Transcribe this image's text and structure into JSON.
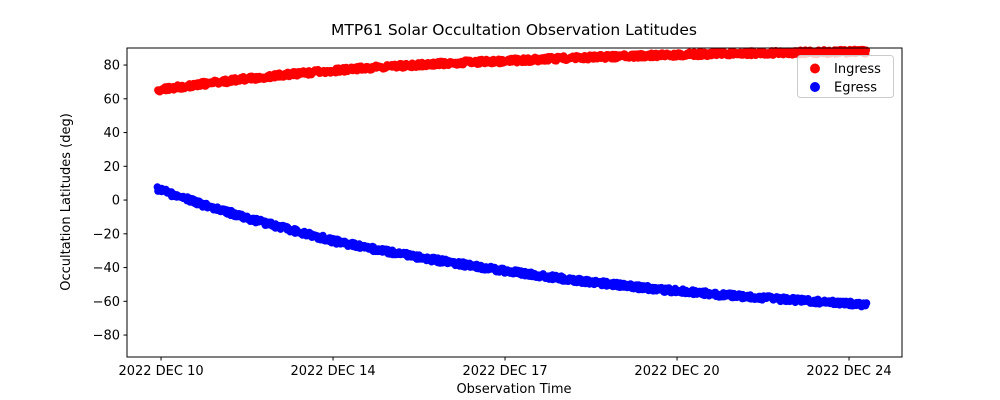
{
  "figure": {
    "background": "#ffffff"
  },
  "chart_data": {
    "type": "scatter",
    "title": "MTP61 Solar Occultation Observation Latitudes",
    "xlabel": "Observation Time",
    "ylabel": "Occultation Latitudes (deg)",
    "grid": false,
    "x_tick_labels": [
      "2022 DEC 10",
      "2022 DEC 14",
      "2022 DEC 17",
      "2022 DEC 20",
      "2022 DEC 24"
    ],
    "x_tick_positions": [
      0,
      1,
      2,
      3,
      4
    ],
    "y_ticks": [
      80,
      60,
      40,
      20,
      0,
      -20,
      -40,
      -60,
      -80
    ],
    "xlim": [
      -0.198,
      4.308
    ],
    "ylim": [
      -93,
      90.1
    ],
    "legend": {
      "position": "upper right",
      "entries": [
        "Ingress",
        "Egress"
      ]
    },
    "series": [
      {
        "name": "Ingress",
        "color": "#ff0000",
        "marker": "circle",
        "points": [
          [
            -0.02,
            65.0
          ],
          [
            0.25,
            68.9
          ],
          [
            0.5,
            71.9
          ],
          [
            0.75,
            74.5
          ],
          [
            1.0,
            76.7
          ],
          [
            1.25,
            78.6
          ],
          [
            1.5,
            80.2
          ],
          [
            1.75,
            81.5
          ],
          [
            2.0,
            82.4
          ],
          [
            2.25,
            83.6
          ],
          [
            2.5,
            84.6
          ],
          [
            2.75,
            85.4
          ],
          [
            3.0,
            86.1
          ],
          [
            3.25,
            86.7
          ],
          [
            3.5,
            87.1
          ],
          [
            3.75,
            87.5
          ],
          [
            4.0,
            87.9
          ],
          [
            4.11,
            88.0
          ]
        ]
      },
      {
        "name": "Egress",
        "color": "#0000ff",
        "marker": "circle",
        "points": [
          [
            -0.02,
            6.5
          ],
          [
            0.25,
            -2.9
          ],
          [
            0.5,
            -10.6
          ],
          [
            0.75,
            -17.4
          ],
          [
            1.0,
            -24.2
          ],
          [
            1.25,
            -29.4
          ],
          [
            1.5,
            -33.8
          ],
          [
            1.75,
            -38.1
          ],
          [
            2.0,
            -42.0
          ],
          [
            2.25,
            -45.5
          ],
          [
            2.5,
            -48.6
          ],
          [
            2.75,
            -51.3
          ],
          [
            3.0,
            -53.8
          ],
          [
            3.25,
            -56.0
          ],
          [
            3.5,
            -58.0
          ],
          [
            3.75,
            -59.7
          ],
          [
            4.0,
            -61.3
          ],
          [
            4.11,
            -62.0
          ]
        ]
      }
    ]
  }
}
